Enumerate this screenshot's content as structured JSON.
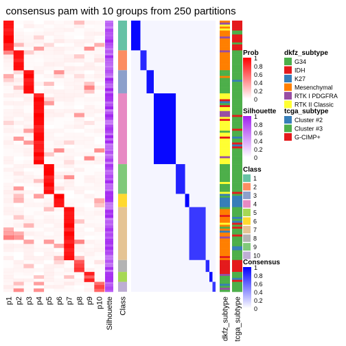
{
  "title": "consensus pam with 10 groups from 250 partitions",
  "chart_data": {
    "type": "heatmap",
    "title": "consensus pam with 10 groups from 250 partitions",
    "membership_columns": [
      "p1",
      "p2",
      "p3",
      "p4",
      "p5",
      "p6",
      "p7",
      "p8",
      "p9",
      "p10"
    ],
    "annotation_columns": [
      "Silhouette",
      "Class"
    ],
    "right_annotation_columns": [
      "dkfz_subtype",
      "tcga_subtype"
    ],
    "class_blocks": [
      {
        "class": 1,
        "rows": 45
      },
      {
        "class": 2,
        "rows": 30
      },
      {
        "class": 3,
        "rows": 35
      },
      {
        "class": 4,
        "rows": 107
      },
      {
        "class": 9,
        "rows": 45
      },
      {
        "class": 6,
        "rows": 20
      },
      {
        "class": 7,
        "rows": 80
      },
      {
        "class": 8,
        "rows": 18
      },
      {
        "class": 5,
        "rows": 15
      },
      {
        "class": 10,
        "rows": 15
      }
    ],
    "legends": {
      "prob": {
        "title": "Prob",
        "ticks": [
          "1",
          "0.8",
          "0.6",
          "0.4",
          "0.2",
          "0"
        ]
      },
      "silhouette": {
        "title": "Silhouette",
        "ticks": [
          "1",
          "0.8",
          "0.6",
          "0.4",
          "0.2",
          "0"
        ]
      },
      "consensus": {
        "title": "Consensus",
        "ticks": [
          "1",
          "0.8",
          "0.6",
          "0.4",
          "0.2",
          "0"
        ]
      },
      "class": {
        "title": "Class",
        "items": [
          "1",
          "2",
          "3",
          "4",
          "5",
          "6",
          "7",
          "8",
          "9",
          "10"
        ],
        "colors": [
          "#66C2A5",
          "#FC8D62",
          "#8DA0CB",
          "#E78AC3",
          "#A6D854",
          "#FFD92F",
          "#E5C494",
          "#B3B3B3",
          "#80C97A",
          "#BEAED4"
        ]
      },
      "dkfz_subtype": {
        "title": "dkfz_subtype",
        "items": [
          "G34",
          "IDH",
          "K27",
          "Mesenchymal",
          "RTK I PDGFRA",
          "RTK II Classic"
        ],
        "colors": [
          "#4DAF4A",
          "#E41A1C",
          "#377EB8",
          "#FF7F00",
          "#984EA3",
          "#FFFF33"
        ]
      },
      "tcga_subtype": {
        "title": "tcga_subtype",
        "items": [
          "Cluster #2",
          "Cluster #3",
          "G-CIMP+"
        ],
        "colors": [
          "#377EB8",
          "#4DAF4A",
          "#E41A1C"
        ]
      }
    },
    "colors": {
      "prob_high": "#FF0000",
      "consensus_high": "#0000FF",
      "silhouette_high": "#A020F0"
    }
  }
}
